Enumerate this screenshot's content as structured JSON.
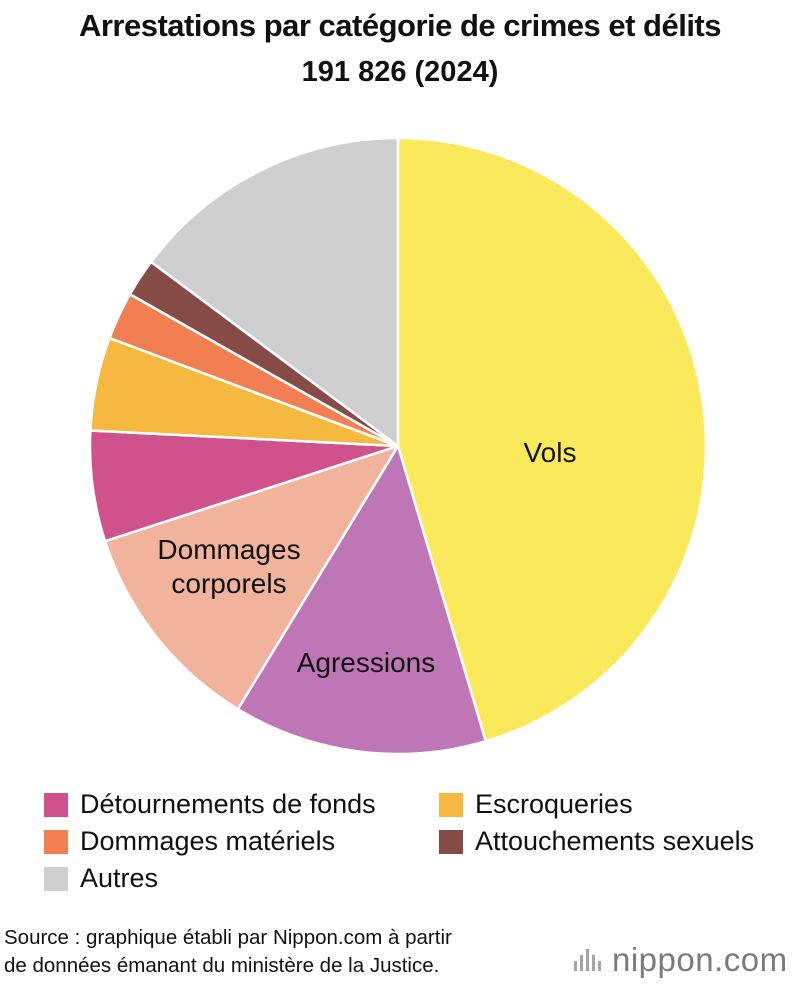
{
  "title": "Arrestations par catégorie de crimes et délits",
  "subtitle": "191 826 (2024)",
  "chart_data": {
    "type": "pie",
    "title": "Arrestations par catégorie de crimes et délits",
    "subtitle": "191 826 (2024)",
    "start_angle_deg": 0,
    "direction": "clockwise",
    "slices": [
      {
        "label": "Vols",
        "value": 45.4,
        "color": "#fbe95c",
        "show_label": true
      },
      {
        "label": "Agressions",
        "value": 13.3,
        "color": "#bf76b6",
        "show_label": true
      },
      {
        "label": "Dommages corporels",
        "label_lines": [
          "Dommages",
          "corporels"
        ],
        "value": 11.3,
        "color": "#f1b39c",
        "show_label": true
      },
      {
        "label": "Détournements de fonds",
        "value": 5.8,
        "color": "#d0528d",
        "show_label": false
      },
      {
        "label": "Escroqueries",
        "value": 4.9,
        "color": "#f5b93f",
        "show_label": false
      },
      {
        "label": "Dommages matériels",
        "value": 2.5,
        "color": "#f27f52",
        "show_label": false
      },
      {
        "label": "Attouchements sexuels",
        "value": 2.0,
        "color": "#864b47",
        "show_label": false
      },
      {
        "label": "Autres",
        "value": 14.8,
        "color": "#cfcfcf",
        "show_label": false
      }
    ]
  },
  "legend": [
    [
      {
        "label": "Détournements de fonds",
        "color": "#d0528d"
      },
      {
        "label": "Escroqueries",
        "color": "#f5b93f"
      }
    ],
    [
      {
        "label": "Dommages matériels",
        "color": "#f27f52"
      },
      {
        "label": "Attouchements sexuels",
        "color": "#864b47"
      }
    ],
    [
      {
        "label": "Autres",
        "color": "#cfcfcf"
      }
    ]
  ],
  "source": {
    "line1": "Source : graphique établi par Nippon.com à partir",
    "line2": "de données émanant du ministère de la Justice."
  },
  "logo": {
    "text": "nippon.com",
    "icon": "nippon-bars-icon"
  }
}
